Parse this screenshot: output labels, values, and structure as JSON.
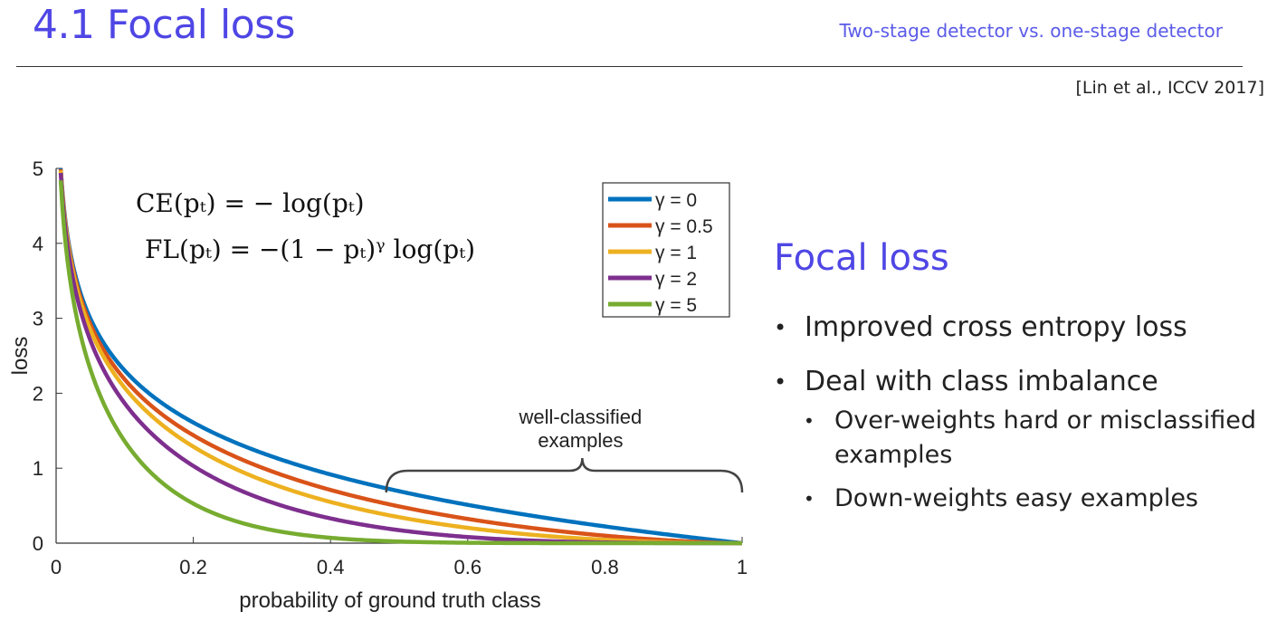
{
  "slide": {
    "title": "4.1 Focal loss",
    "subtitle": "Two-stage detector vs. one-stage detector",
    "citation": "[Lin et al., ICCV 2017]"
  },
  "panel": {
    "heading": "Focal loss",
    "bullets": [
      "Improved cross entropy loss",
      "Deal with class imbalance"
    ],
    "sub_bullets": [
      "Over-weights hard or misclassified examples",
      "Down-weights easy examples"
    ]
  },
  "chart_data": {
    "type": "line",
    "xlabel": "probability of ground truth class",
    "ylabel": "loss",
    "xlim": [
      0,
      1
    ],
    "ylim": [
      0,
      5
    ],
    "x_ticks": [
      "0",
      "0.2",
      "0.4",
      "0.6",
      "0.8",
      "1"
    ],
    "y_ticks": [
      "0",
      "1",
      "2",
      "3",
      "4",
      "5"
    ],
    "formula_ce": "CE(pₜ) = − log(pₜ)",
    "formula_fl": "FL(pₜ) = −(1 − pₜ)ᵞ log(pₜ)",
    "annotation": [
      "well-classified",
      "examples"
    ],
    "annotation_range": [
      0.6,
      1.0
    ],
    "legend_position": "top-right",
    "series": [
      {
        "name": "γ = 0",
        "gamma": 0,
        "color": "#0072BD"
      },
      {
        "name": "γ = 0.5",
        "gamma": 0.5,
        "color": "#D95319"
      },
      {
        "name": "γ = 1",
        "gamma": 1,
        "color": "#EDB120"
      },
      {
        "name": "γ = 2",
        "gamma": 2,
        "color": "#7E2F8E"
      },
      {
        "name": "γ = 5",
        "gamma": 5,
        "color": "#77AC30"
      }
    ]
  }
}
